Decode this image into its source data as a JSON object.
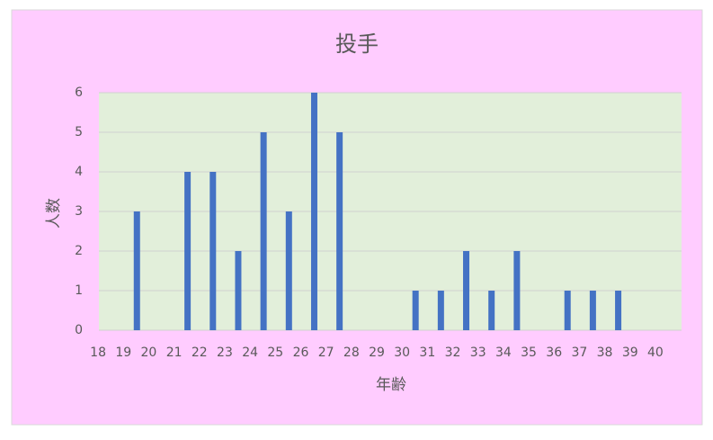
{
  "chart_data": {
    "type": "bar",
    "title": "投手",
    "x_label": "年齢",
    "y_label": "人数",
    "categories": [
      "18",
      "19",
      "20",
      "21",
      "22",
      "23",
      "24",
      "25",
      "26",
      "27",
      "28",
      "29",
      "30",
      "31",
      "32",
      "33",
      "34",
      "35",
      "36",
      "37",
      "38",
      "39",
      "40"
    ],
    "values": [
      0,
      3,
      0,
      4,
      4,
      2,
      5,
      3,
      6,
      5,
      0,
      0,
      1,
      1,
      2,
      1,
      2,
      0,
      1,
      1,
      1,
      0,
      0
    ],
    "color": "#4472c4",
    "ylim": [
      0,
      6
    ],
    "yticks": [
      0,
      1,
      2,
      3,
      4,
      5,
      6
    ],
    "grid": true
  }
}
